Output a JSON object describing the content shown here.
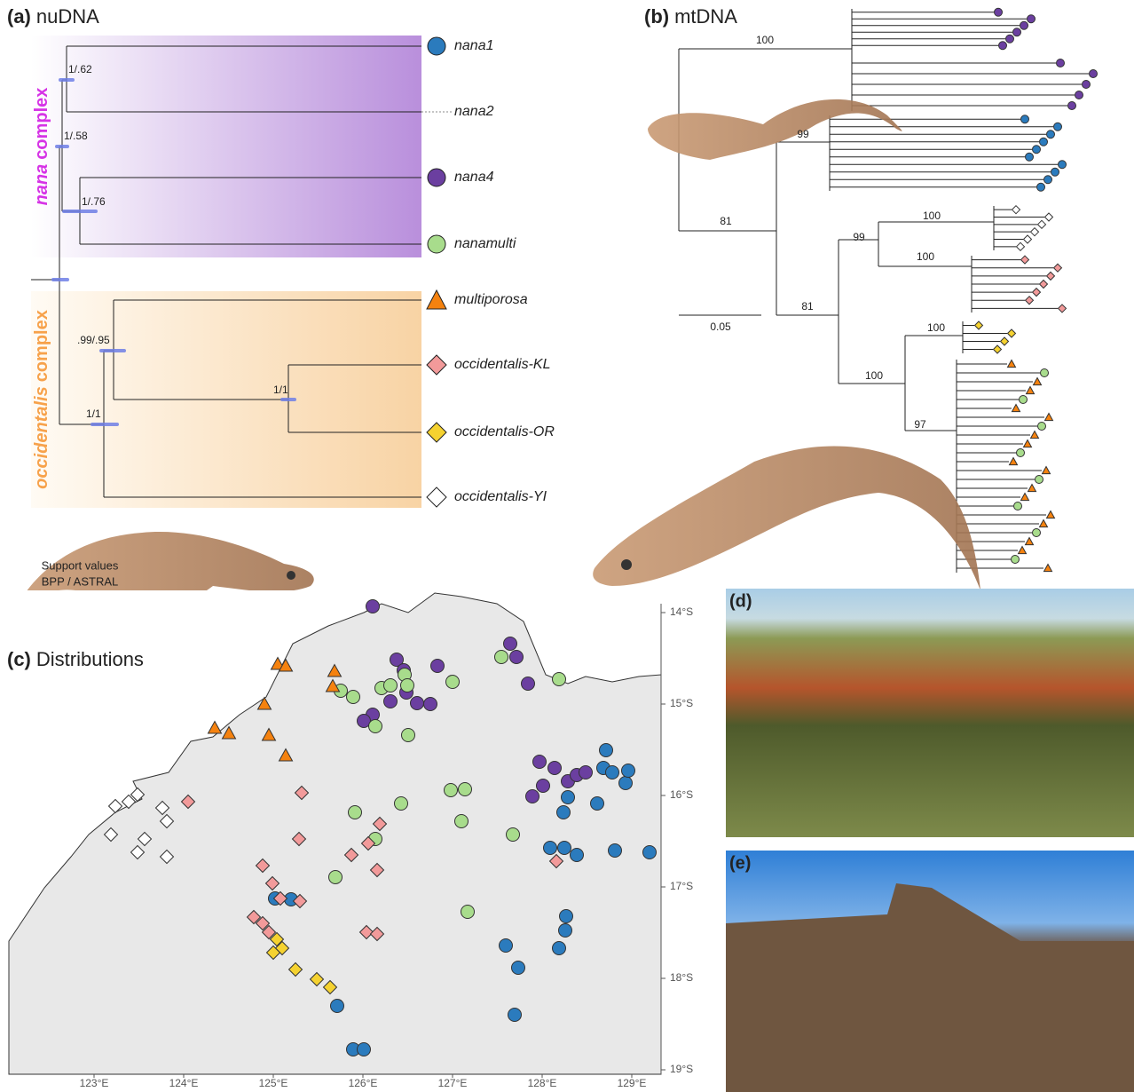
{
  "panel_a": {
    "label": "(a)",
    "title": "nuDNA",
    "nana_complex": {
      "italic": "nana",
      "rest": "complex"
    },
    "occidentalis_complex": {
      "italic": "occidentalis",
      "rest": "complex"
    },
    "support": [
      "1/.62",
      "1/.58",
      "1/.76",
      ".99/.95",
      "1/1",
      "1/1"
    ],
    "tips": [
      "nana1",
      "nana2",
      "nana4",
      "nanamulti",
      "multiporosa",
      "occidentalis-KL",
      "occidentalis-OR",
      "occidentalis-YI"
    ],
    "note": [
      "Support values",
      "BPP / ASTRAL"
    ]
  },
  "panel_b": {
    "label": "(b)",
    "title": "mtDNA",
    "support": [
      "100",
      "99",
      "81",
      "99",
      "100",
      "100",
      "81",
      "100",
      "100",
      "97"
    ],
    "scale": "0.05"
  },
  "panel_c": {
    "label": "(c)",
    "title": "Distributions",
    "lat_ticks": [
      "14°S",
      "15°S",
      "16°S",
      "17°S",
      "18°S",
      "19°S"
    ],
    "lon_ticks": [
      "123°E",
      "124°E",
      "125°E",
      "126°E",
      "127°E",
      "128°E",
      "129°E"
    ]
  },
  "panel_d": {
    "label": "(d)"
  },
  "panel_e": {
    "label": "(e)"
  }
}
